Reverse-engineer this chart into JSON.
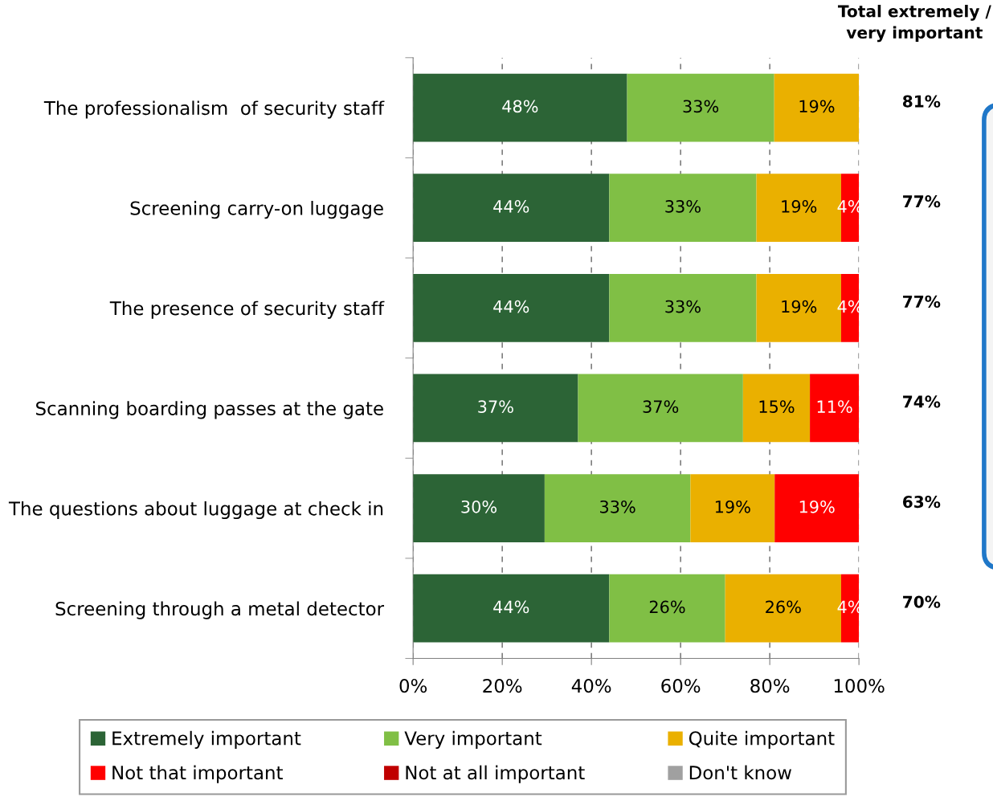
{
  "chart_data": {
    "type": "bar",
    "orientation": "horizontal",
    "stacked": true,
    "categories": [
      "The professionalism  of security staff",
      "Screening carry-on luggage",
      "The presence of security staff",
      "Scanning boarding passes at the gate",
      "The questions about luggage at check in",
      "Screening through a metal detector"
    ],
    "series": [
      {
        "name": "Extremely important",
        "color": "#2c6436",
        "values": [
          48,
          44,
          44,
          37,
          29.5,
          44
        ],
        "value_labels": [
          "48%",
          "44%",
          "44%",
          "37%",
          "30%",
          "44%"
        ]
      },
      {
        "name": "Very important",
        "color": "#80bf45",
        "values": [
          33,
          33,
          33,
          37,
          32.7,
          26
        ],
        "value_labels": [
          "33%",
          "33%",
          "33%",
          "37%",
          "33%",
          "26%"
        ]
      },
      {
        "name": "Quite important",
        "color": "#eab000",
        "values": [
          19,
          19,
          19,
          15,
          18.9,
          26
        ],
        "value_labels": [
          "19%",
          "19%",
          "19%",
          "15%",
          "19%",
          "26%"
        ]
      },
      {
        "name": "Not that important",
        "color": "#ff0000",
        "values": [
          null,
          4,
          4,
          11,
          18.9,
          4
        ],
        "value_labels": [
          null,
          "4%",
          "4%",
          "11%",
          "19%",
          "4%"
        ]
      },
      {
        "name": "Not at all important",
        "color": "#c00000",
        "values": [
          null,
          null,
          null,
          null,
          null,
          null
        ]
      },
      {
        "name": "Don't know",
        "color": "#a0a0a0",
        "values": [
          null,
          null,
          null,
          null,
          null,
          null
        ]
      }
    ],
    "xlim": [
      0,
      100
    ],
    "xticks": [
      {
        "value": 0,
        "label": "0%"
      },
      {
        "value": 20,
        "label": "20%"
      },
      {
        "value": 40,
        "label": "40%"
      },
      {
        "value": 60,
        "label": "60%"
      },
      {
        "value": 80,
        "label": "80%"
      },
      {
        "value": 100,
        "label": "100%"
      }
    ],
    "grid": "x",
    "legend": "bottom",
    "annotations": [
      "Total extremely /\nvery important",
      "81%",
      "77%",
      "77%",
      "74%",
      "63%",
      "70%"
    ]
  }
}
